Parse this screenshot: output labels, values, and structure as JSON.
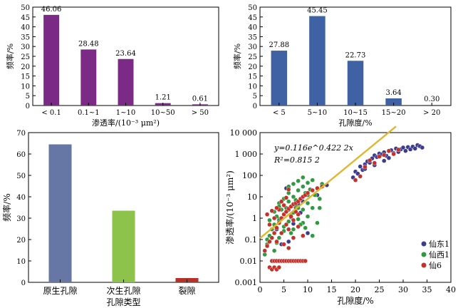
{
  "chart_data": [
    {
      "type": "bar",
      "id": "tl",
      "color": "#7b2a86",
      "categories": [
        "< 0.1",
        "0.1~1",
        "1~10",
        "10~50",
        "> 50"
      ],
      "values": [
        46.06,
        28.48,
        23.64,
        1.21,
        0.61
      ],
      "value_labels": [
        "46.06",
        "28.48",
        "23.64",
        "1.21",
        "0.61"
      ],
      "ylim": [
        0,
        50
      ],
      "yticks": [
        "0",
        "5",
        "10",
        "15",
        "20",
        "25",
        "30",
        "35",
        "40",
        "45",
        "50"
      ],
      "ylabel": "频率/%",
      "xlabel": "渗透率/(10⁻³ μm²)"
    },
    {
      "type": "bar",
      "id": "tr",
      "color": "#3f62a4",
      "categories": [
        "< 5",
        "5~10",
        "10~15",
        "15~20",
        "> 20"
      ],
      "values": [
        27.88,
        45.45,
        22.73,
        3.64,
        0.3
      ],
      "value_labels": [
        "27.88",
        "45.45",
        "22.73",
        "3.64",
        "0.30"
      ],
      "ylim": [
        0,
        50
      ],
      "yticks": [
        "0",
        "5",
        "10",
        "15",
        "20",
        "25",
        "30",
        "35",
        "40",
        "45",
        "50"
      ],
      "ylabel": "频率/%",
      "xlabel": "孔隙度/%"
    },
    {
      "type": "bar",
      "id": "bl",
      "categories": [
        "原生孔隙",
        "次生孔隙",
        "裂隙"
      ],
      "values": [
        64.5,
        33.5,
        2.0
      ],
      "colors": [
        "#6677a5",
        "#8dc34b",
        "#b4322a"
      ],
      "ylim": [
        0,
        70
      ],
      "yticks": [
        "0",
        "10",
        "20",
        "30",
        "40",
        "50",
        "60",
        "70"
      ],
      "ylabel": "频率/%",
      "xlabel": "孔隙类型"
    },
    {
      "type": "scatter",
      "id": "br",
      "xlim": [
        0,
        40
      ],
      "ylim": [
        0.001,
        10000
      ],
      "log_y": true,
      "xticks": [
        "0",
        "5",
        "10",
        "15",
        "20",
        "25",
        "30",
        "35",
        "40"
      ],
      "yticks": [
        "0.001",
        "0.01",
        "0.1",
        "1",
        "10",
        "100",
        "1 000",
        "10 000"
      ],
      "xlabel": "孔隙度/%",
      "ylabel": "渗透率/(10⁻³ μm²)",
      "equation": "y=0.116e^0.422 2x",
      "r2": "R²=0.815 2",
      "fit": {
        "a": 0.116,
        "b": 0.4222,
        "x_range": [
          0,
          28.5
        ],
        "color": "#e0b72e"
      },
      "legend": {
        "placement": "right",
        "entries": [
          "仙东1",
          "仙西1",
          "仙6"
        ]
      },
      "series": [
        {
          "name": "仙东1",
          "color": "#3b3b8f",
          "points": [
            [
              19.5,
              80
            ],
            [
              20,
              150
            ],
            [
              20.5,
              120
            ],
            [
              21,
              260
            ],
            [
              21.5,
              180
            ],
            [
              22,
              330
            ],
            [
              22.5,
              450
            ],
            [
              23,
              390
            ],
            [
              23.5,
              620
            ],
            [
              24,
              860
            ],
            [
              24.5,
              720
            ],
            [
              25,
              1050
            ],
            [
              25.5,
              950
            ],
            [
              26,
              1200
            ],
            [
              26.5,
              820
            ],
            [
              27,
              1350
            ],
            [
              27.5,
              1500
            ],
            [
              28,
              1100
            ],
            [
              28.5,
              1800
            ],
            [
              29,
              1250
            ],
            [
              29.5,
              1650
            ],
            [
              30,
              2000
            ],
            [
              30.5,
              1400
            ],
            [
              31,
              2100
            ],
            [
              31.5,
              1650
            ],
            [
              32,
              2200
            ],
            [
              32.5,
              1800
            ],
            [
              33,
              2600
            ],
            [
              33.5,
              2300
            ],
            [
              34,
              2000
            ],
            [
              26,
              480
            ],
            [
              27,
              650
            ],
            [
              22,
              200
            ],
            [
              24,
              300
            ],
            [
              5.5,
              25
            ],
            [
              6,
              2.5
            ],
            [
              6.5,
              1.1
            ],
            [
              7,
              0.55
            ],
            [
              7.5,
              3.2
            ],
            [
              8,
              4.5
            ],
            [
              4,
              0.9
            ],
            [
              4.5,
              0.06
            ],
            [
              3.5,
              0.3
            ],
            [
              6,
              0.08
            ],
            [
              9,
              6
            ],
            [
              8.5,
              1.8
            ],
            [
              10,
              0.2
            ],
            [
              12,
              12
            ],
            [
              14,
              35
            ]
          ]
        },
        {
          "name": "仙西1",
          "color": "#2f9a3f",
          "points": [
            [
              1,
              0.02
            ],
            [
              1.5,
              0.06
            ],
            [
              2,
              0.15
            ],
            [
              2.5,
              0.3
            ],
            [
              3,
              0.5
            ],
            [
              3.5,
              1.2
            ],
            [
              4,
              0.8
            ],
            [
              4.5,
              2.5
            ],
            [
              5,
              0.4
            ],
            [
              5.5,
              3
            ],
            [
              6,
              6
            ],
            [
              6.5,
              1.5
            ],
            [
              7,
              10
            ],
            [
              7.5,
              4
            ],
            [
              8,
              20
            ],
            [
              8.5,
              8
            ],
            [
              9,
              30
            ],
            [
              9.5,
              15
            ],
            [
              10,
              45
            ],
            [
              10.5,
              22
            ],
            [
              11,
              60
            ],
            [
              11.5,
              12
            ],
            [
              12,
              25
            ],
            [
              12.5,
              8
            ],
            [
              13,
              40
            ],
            [
              3,
              0.03
            ],
            [
              4,
              0.12
            ],
            [
              5,
              0.25
            ],
            [
              6,
              0.7
            ],
            [
              7,
              1.8
            ],
            [
              8,
              0.9
            ],
            [
              9,
              2.5
            ],
            [
              10,
              5
            ],
            [
              11,
              3
            ],
            [
              2,
              0.8
            ],
            [
              3,
              2
            ],
            [
              4,
              5
            ],
            [
              5,
              8
            ],
            [
              6,
              15
            ],
            [
              7,
              40
            ],
            [
              8,
              3
            ],
            [
              9,
              0.6
            ],
            [
              10,
              1.2
            ],
            [
              3.5,
              0.07
            ],
            [
              6.5,
              0.2
            ],
            [
              9.5,
              0.35
            ],
            [
              11,
              0.15
            ],
            [
              12,
              0.6
            ],
            [
              7,
              0.3
            ],
            [
              5.5,
              9
            ],
            [
              8,
              55
            ],
            [
              9,
              80
            ],
            [
              10,
              12
            ],
            [
              6,
              30
            ],
            [
              4,
              3.5
            ],
            [
              2.5,
              0.3
            ],
            [
              1.5,
              0.1
            ],
            [
              7.5,
              7
            ],
            [
              8.5,
              0.5
            ],
            [
              12.5,
              3
            ]
          ]
        },
        {
          "name": "仙6",
          "color": "#c4302a",
          "points": [
            [
              2,
              0.005
            ],
            [
              2.5,
              0.004
            ],
            [
              3,
              0.005
            ],
            [
              3.5,
              0.004
            ],
            [
              4,
              0.005
            ],
            [
              2.5,
              0.01
            ],
            [
              3,
              0.01
            ],
            [
              3.5,
              0.01
            ],
            [
              4,
              0.01
            ],
            [
              4.5,
              0.01
            ],
            [
              5,
              0.01
            ],
            [
              5.5,
              0.01
            ],
            [
              6,
              0.01
            ],
            [
              6.5,
              0.01
            ],
            [
              7,
              0.01
            ],
            [
              7.5,
              0.01
            ],
            [
              8,
              0.01
            ],
            [
              8.5,
              0.01
            ],
            [
              9,
              0.01
            ],
            [
              9.5,
              0.01
            ],
            [
              1,
              0.03
            ],
            [
              1.5,
              0.05
            ],
            [
              2,
              0.08
            ],
            [
              2.5,
              0.12
            ],
            [
              3,
              0.2
            ],
            [
              3.5,
              0.35
            ],
            [
              4,
              0.6
            ],
            [
              4.5,
              1
            ],
            [
              5,
              1.5
            ],
            [
              5.5,
              2
            ],
            [
              6,
              2.8
            ],
            [
              6.5,
              3.5
            ],
            [
              7,
              4.5
            ],
            [
              7.5,
              5
            ],
            [
              8,
              6
            ],
            [
              8.5,
              8
            ],
            [
              9,
              10
            ],
            [
              9.5,
              12
            ],
            [
              10,
              15
            ],
            [
              11,
              20
            ],
            [
              12,
              25
            ],
            [
              13,
              30
            ],
            [
              2,
              0.5
            ],
            [
              3,
              1
            ],
            [
              4,
              2.5
            ],
            [
              5,
              4
            ],
            [
              6,
              0.3
            ],
            [
              7,
              0.8
            ],
            [
              8,
              1.5
            ],
            [
              9,
              0.15
            ],
            [
              3.5,
              0.08
            ],
            [
              4.5,
              0.2
            ],
            [
              5.5,
              0.5
            ],
            [
              6.5,
              1.2
            ],
            [
              1.5,
              1.5
            ],
            [
              2.5,
              2.2
            ],
            [
              3.5,
              3
            ],
            [
              4.5,
              6
            ],
            [
              5.5,
              9
            ],
            [
              6,
              22
            ],
            [
              7,
              0.12
            ],
            [
              7.5,
              2
            ],
            [
              8,
              0.4
            ],
            [
              21,
              90
            ],
            [
              22,
              250
            ],
            [
              23,
              500
            ],
            [
              24,
              380
            ],
            [
              25,
              760
            ],
            [
              26,
              900
            ],
            [
              27,
              1400
            ],
            [
              28,
              1000
            ],
            [
              29,
              1600
            ],
            [
              20,
              60
            ],
            [
              5,
              0.06
            ],
            [
              6,
              0.04
            ]
          ]
        }
      ]
    }
  ]
}
